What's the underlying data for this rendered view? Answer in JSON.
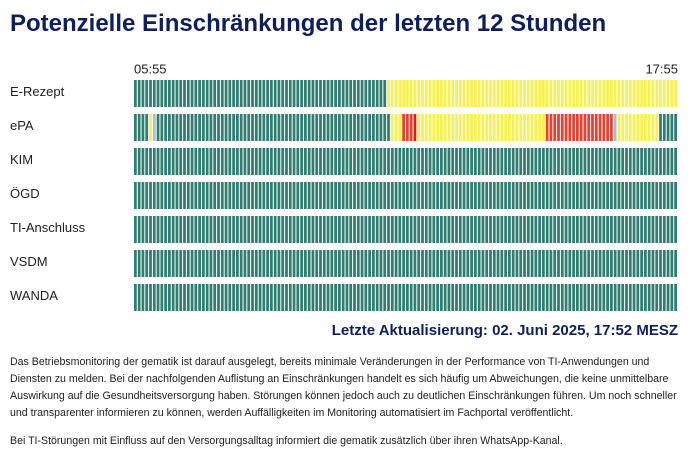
{
  "title": "Potenzielle Einschränkungen der letzten 12 Stunden",
  "time_start": "05:55",
  "time_end": "17:55",
  "rows": [
    {
      "label": "E-Rezept",
      "segments": [
        {
          "color": "#2f7e70",
          "count": 67
        },
        {
          "color": "#f6f150",
          "count": 77
        }
      ]
    },
    {
      "label": "ePA",
      "segments": [
        {
          "color": "#2f7e70",
          "count": 4
        },
        {
          "color": "#f6f150",
          "count": 1
        },
        {
          "color": "#a9bcd4",
          "count": 1
        },
        {
          "color": "#2f7e70",
          "count": 62
        },
        {
          "color": "#f6f150",
          "count": 3
        },
        {
          "color": "#e8412f",
          "count": 3
        },
        {
          "color": "#c9261c",
          "count": 1
        },
        {
          "color": "#f6f150",
          "count": 34
        },
        {
          "color": "#e8412f",
          "count": 18
        },
        {
          "color": "#a9bcd4",
          "count": 1
        },
        {
          "color": "#f6f150",
          "count": 11
        },
        {
          "color": "#2f7e70",
          "count": 5
        }
      ]
    },
    {
      "label": "KIM",
      "segments": [
        {
          "color": "#2f7e70",
          "count": 144
        }
      ]
    },
    {
      "label": "ÖGD",
      "segments": [
        {
          "color": "#2f7e70",
          "count": 144
        }
      ]
    },
    {
      "label": "TI-Anschluss",
      "segments": [
        {
          "color": "#2f7e70",
          "count": 144
        }
      ]
    },
    {
      "label": "VSDM",
      "segments": [
        {
          "color": "#2f7e70",
          "count": 144
        }
      ]
    },
    {
      "label": "WANDA",
      "segments": [
        {
          "color": "#2f7e70",
          "count": 144
        }
      ]
    }
  ],
  "last_update": "Letzte Aktualisierung: 02. Juni 2025, 17:52 MESZ",
  "paragraphs": [
    "Das Betriebsmonitoring der gematik ist darauf ausgelegt, bereits minimale Veränderungen in der Performance von TI-Anwendungen und Diensten zu melden. Bei der nachfolgenden Auflistung an Einschränkungen handelt es sich häufig um Abweichungen, die keine unmittelbare Auswirkung auf die Gesundheitsversorgung haben. Störungen können jedoch auch zu deutlichen Einschränkungen führen. Um noch schneller und transparenter informieren zu können, werden Auffälligkeiten im Monitoring automatisiert im Fachportal veröffentlicht.",
    "Bei TI-Störungen mit Einfluss auf den Versorgungsalltag informiert die gematik zusätzlich über ihren WhatsApp-Kanal."
  ]
}
